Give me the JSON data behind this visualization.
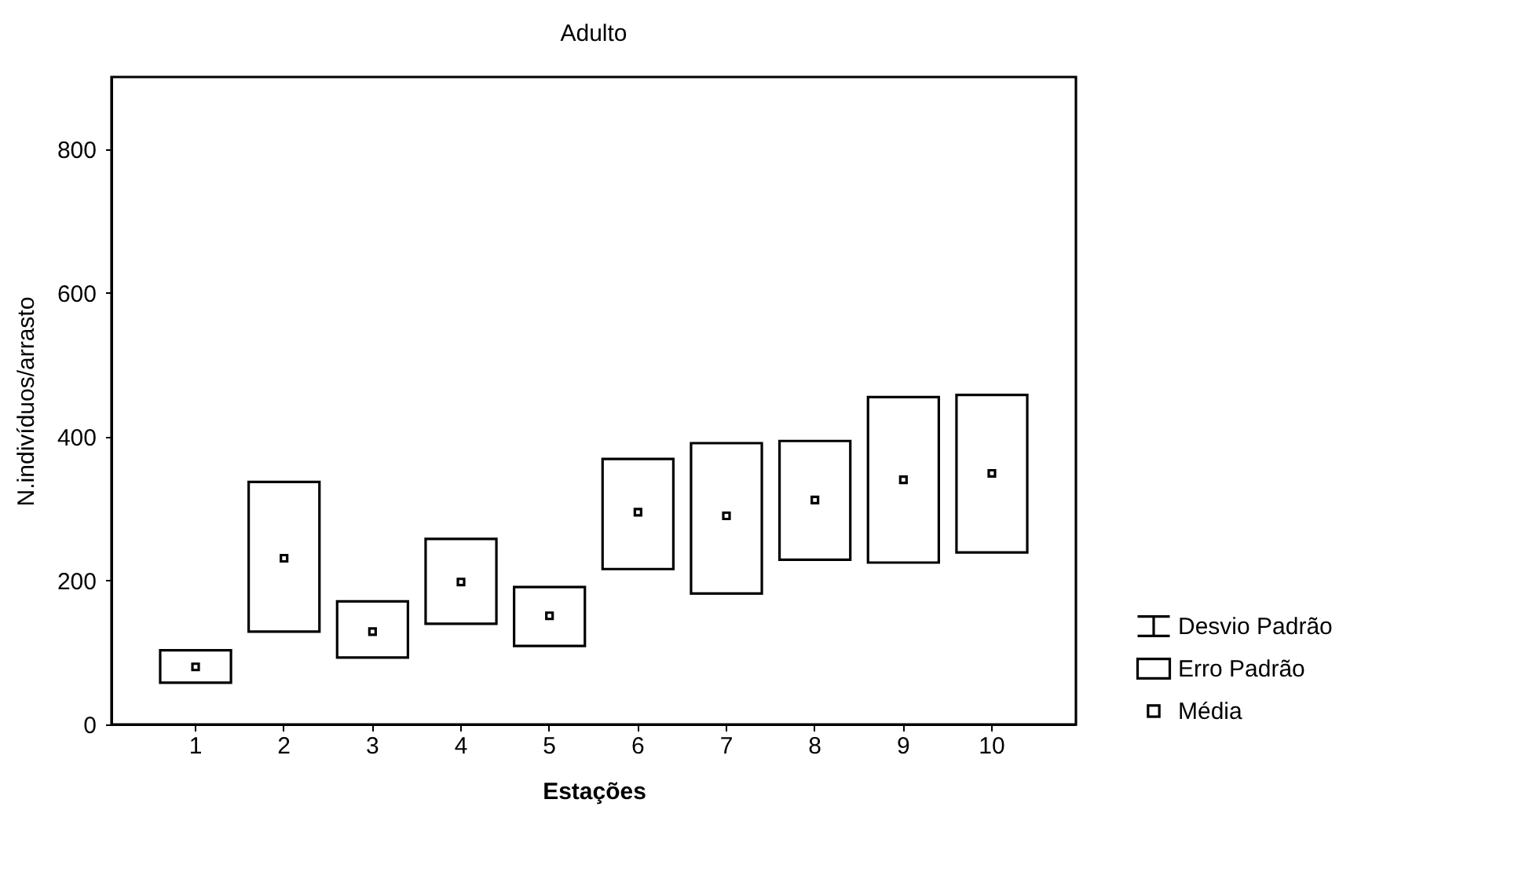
{
  "chart_data": {
    "type": "bar",
    "title": "Adulto",
    "xlabel": "Estações",
    "ylabel": "N.indivíduos/arrasto",
    "categories": [
      "1",
      "2",
      "3",
      "4",
      "5",
      "6",
      "7",
      "8",
      "9",
      "10"
    ],
    "series": [
      {
        "name": "Desvio Padrão",
        "type": "line",
        "color": "#000000",
        "values": [
          null,
          null,
          null,
          null,
          null,
          null,
          null,
          null,
          null,
          null
        ]
      },
      {
        "name": "Erro Padrão",
        "color": "#000000",
        "base": [
          58,
          129,
          93,
          140,
          109,
          216,
          182,
          229,
          225,
          239
        ],
        "values": [
          45,
          208,
          78,
          118,
          82,
          153,
          209,
          165,
          230,
          219
        ]
      },
      {
        "name": "Média",
        "type": "scatter",
        "marker": "square",
        "color": "#000000",
        "values": [
          80,
          231,
          129,
          198,
          151,
          295,
          290,
          312,
          340,
          349
        ]
      }
    ],
    "ylim": [
      0,
      900
    ],
    "yticks": [
      0,
      200,
      400,
      600,
      800
    ],
    "grid": false,
    "legend": "right"
  }
}
